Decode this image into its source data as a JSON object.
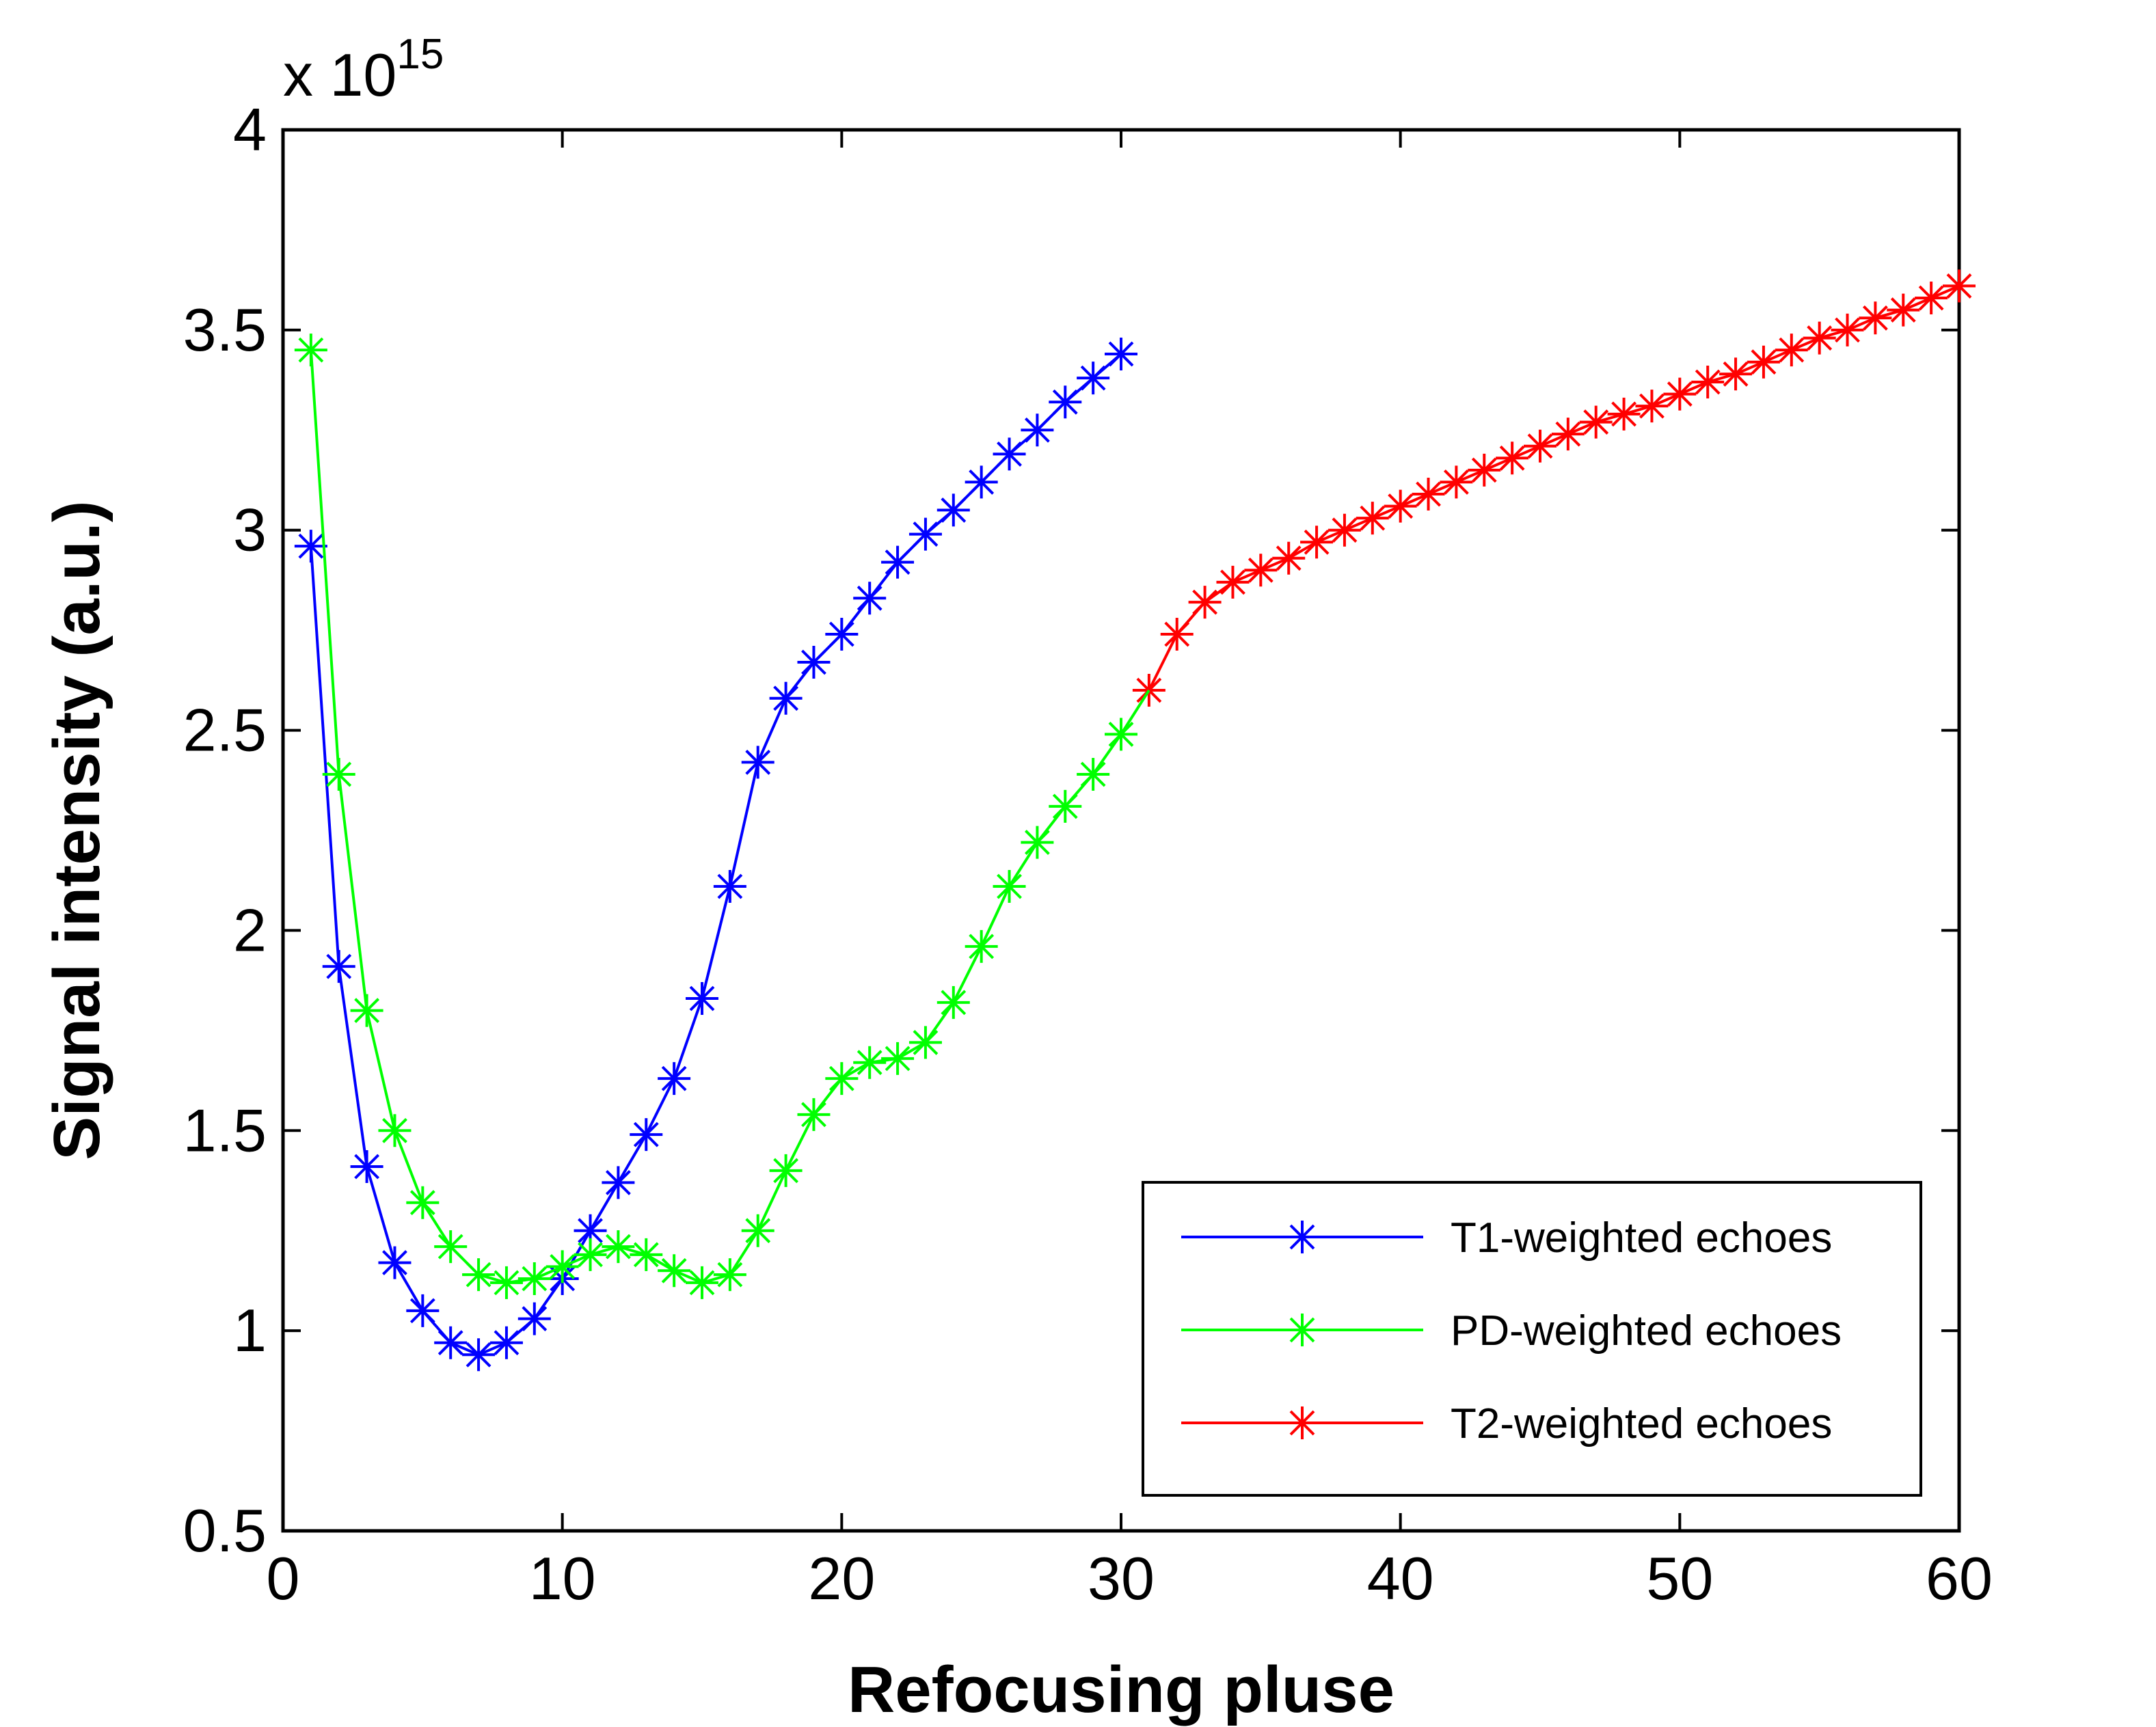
{
  "chart_data": {
    "type": "line",
    "title": "",
    "xlabel": "Refocusing pluse",
    "ylabel": "Signal intensity (a.u.)",
    "y_exponent_label": "x 10",
    "y_exponent_power": "15",
    "xlim": [
      0,
      60
    ],
    "ylim": [
      0.5,
      4
    ],
    "xticks": [
      0,
      10,
      20,
      30,
      40,
      50,
      60
    ],
    "xtick_labels": [
      "0",
      "10",
      "20",
      "30",
      "40",
      "50",
      "60"
    ],
    "yticks": [
      0.5,
      1,
      1.5,
      2,
      2.5,
      3,
      3.5,
      4
    ],
    "ytick_labels": [
      "0.5",
      "1",
      "1.5",
      "2",
      "2.5",
      "3",
      "3.5",
      "4"
    ],
    "grid": false,
    "legend_position": "bottom-right",
    "marker": "asterisk",
    "series": [
      {
        "name": "T1-weighted echoes",
        "color": "#0000ff",
        "x": [
          1,
          2,
          3,
          4,
          5,
          6,
          7,
          8,
          9,
          10,
          11,
          12,
          13,
          14,
          15,
          16,
          17,
          18,
          19,
          20,
          21,
          22,
          23,
          24,
          25,
          26,
          27,
          28,
          29,
          30
        ],
        "values": [
          2.96,
          1.91,
          1.41,
          1.17,
          1.05,
          0.97,
          0.94,
          0.97,
          1.03,
          1.13,
          1.25,
          1.37,
          1.49,
          1.63,
          1.83,
          2.11,
          2.42,
          2.58,
          2.67,
          2.74,
          2.83,
          2.92,
          2.99,
          3.05,
          3.12,
          3.19,
          3.25,
          3.32,
          3.38,
          3.44
        ]
      },
      {
        "name": "PD-weighted echoes",
        "color": "#00ff00",
        "x": [
          1,
          2,
          3,
          4,
          5,
          6,
          7,
          8,
          9,
          10,
          11,
          12,
          13,
          14,
          15,
          16,
          17,
          18,
          19,
          20,
          21,
          22,
          23,
          24,
          25,
          26,
          27,
          28,
          29,
          30
        ],
        "values": [
          3.45,
          2.39,
          1.8,
          1.5,
          1.32,
          1.21,
          1.14,
          1.12,
          1.13,
          1.16,
          1.19,
          1.21,
          1.19,
          1.15,
          1.12,
          1.14,
          1.25,
          1.4,
          1.54,
          1.63,
          1.67,
          1.68,
          1.72,
          1.82,
          1.96,
          2.11,
          2.22,
          2.31,
          2.39,
          2.49
        ]
      },
      {
        "name": "T2-weighted echoes",
        "color": "#ff0000",
        "x": [
          31,
          32,
          33,
          34,
          35,
          36,
          37,
          38,
          39,
          40,
          41,
          42,
          43,
          44,
          45,
          46,
          47,
          48,
          49,
          50,
          51,
          52,
          53,
          54,
          55,
          56,
          57,
          58,
          59,
          60
        ],
        "values": [
          2.6,
          2.74,
          2.82,
          2.87,
          2.9,
          2.93,
          2.97,
          3.0,
          3.03,
          3.06,
          3.09,
          3.12,
          3.15,
          3.18,
          3.21,
          3.24,
          3.27,
          3.29,
          3.31,
          3.34,
          3.37,
          3.39,
          3.42,
          3.45,
          3.48,
          3.5,
          3.53,
          3.55,
          3.58,
          3.61
        ]
      }
    ]
  }
}
